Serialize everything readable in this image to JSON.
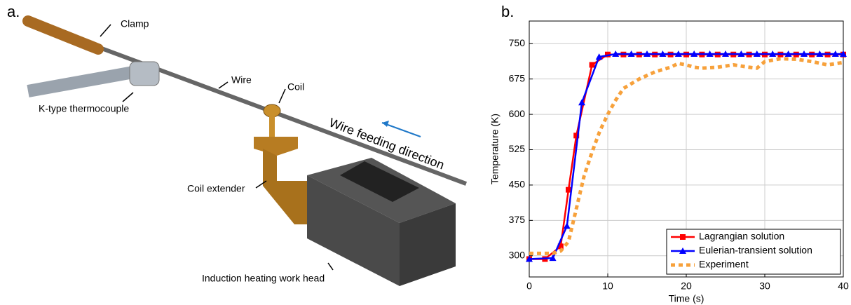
{
  "diagram": {
    "panel_label": "a.",
    "labels": {
      "clamp": "Clamp",
      "thermocouple": "K-type thermocouple",
      "wire": "Wire",
      "coil": "Coil",
      "feed": "Wire feeding direction",
      "extender": "Coil extender",
      "workhead": "Induction heating work head"
    }
  },
  "chart_data": {
    "type": "line",
    "panel_label": "b.",
    "xlabel": "Time (s)",
    "ylabel": "Temperature (K)",
    "xlim": [
      0,
      40
    ],
    "xticks": [
      0,
      10,
      20,
      30,
      40
    ],
    "ylim": [
      255,
      798
    ],
    "yticks": [
      300,
      375,
      450,
      525,
      600,
      675,
      750
    ],
    "grid": true,
    "legend": "lower-right",
    "series": [
      {
        "name": "Lagrangian solution",
        "color": "#ff0000",
        "marker": "square",
        "dash": "solid",
        "x": [
          0,
          2,
          4,
          5,
          6,
          8,
          10,
          12,
          14,
          16,
          18,
          20,
          22,
          24,
          26,
          28,
          30,
          32,
          34,
          36,
          38,
          40
        ],
        "values": [
          293,
          293,
          320,
          440,
          555,
          705,
          727,
          727,
          727,
          727,
          727,
          727,
          727,
          727,
          727,
          727,
          727,
          727,
          727,
          727,
          727,
          727
        ]
      },
      {
        "name": "Eulerian-transient solution",
        "color": "#0000ff",
        "marker": "triangle",
        "dash": "solid",
        "x": [
          0,
          3,
          4.8,
          6.7,
          8.9,
          11,
          13,
          15,
          17,
          19,
          21,
          23,
          25,
          27,
          29,
          31,
          33,
          35,
          37,
          39,
          40
        ],
        "values": [
          293,
          295,
          363,
          625,
          722,
          728,
          728,
          728,
          728,
          728,
          728,
          728,
          728,
          728,
          728,
          728,
          728,
          728,
          728,
          728,
          728
        ]
      },
      {
        "name": "Experiment",
        "color": "#f7a13b",
        "marker": "none",
        "dash": "dotted",
        "x": [
          0,
          2,
          3,
          4,
          5,
          6,
          7,
          8,
          9,
          10,
          11,
          12,
          14,
          16,
          18,
          19,
          20,
          21,
          22,
          24,
          26,
          28,
          29,
          30,
          32,
          34,
          36,
          38,
          40
        ],
        "values": [
          305,
          305,
          305,
          310,
          330,
          400,
          470,
          520,
          565,
          600,
          630,
          655,
          675,
          690,
          700,
          708,
          705,
          700,
          698,
          700,
          705,
          700,
          698,
          712,
          718,
          717,
          712,
          705,
          710
        ]
      }
    ]
  }
}
